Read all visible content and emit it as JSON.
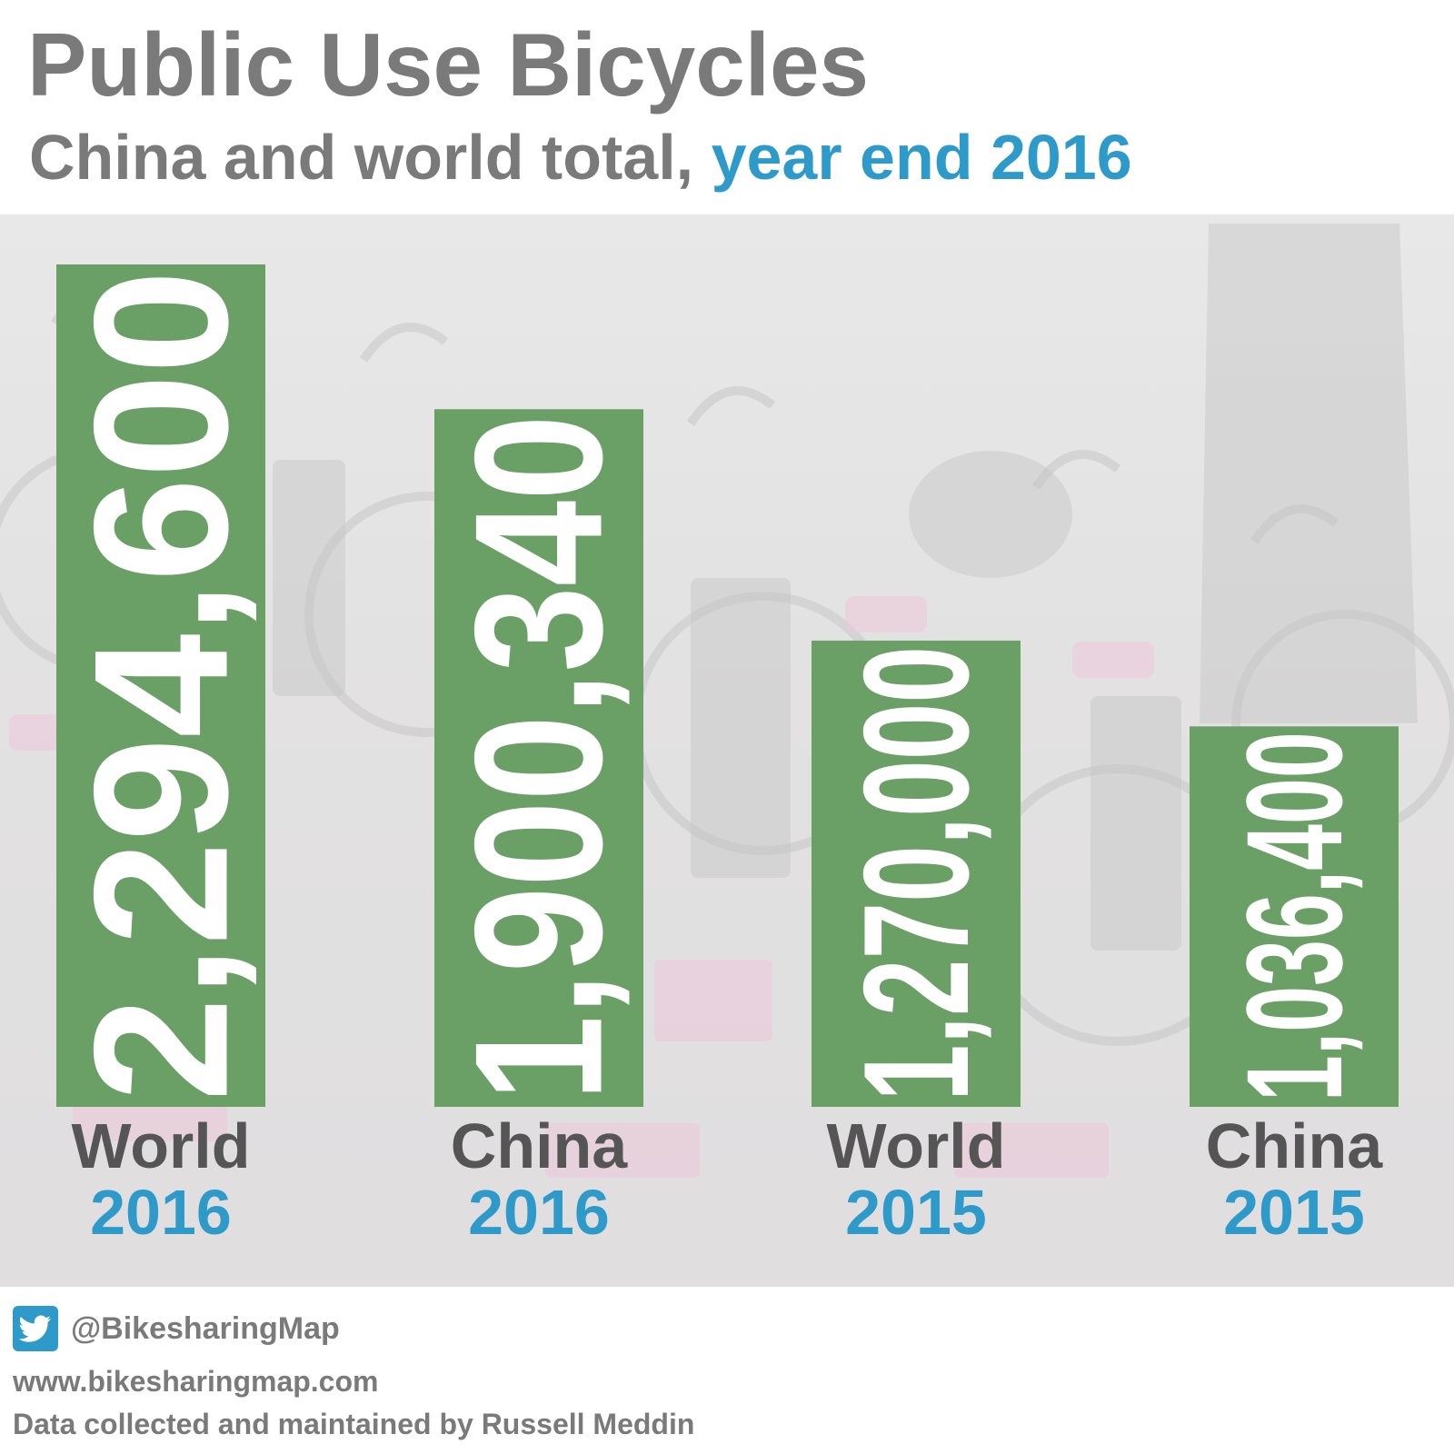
{
  "header": {
    "title": "Public Use Bicycles",
    "subtitle_main": "China and world total,",
    "subtitle_accent": "year end 2016"
  },
  "chart_data": {
    "type": "bar",
    "orientation": "vertical",
    "categories": [
      "World 2016",
      "China 2016",
      "World 2015",
      "China 2015"
    ],
    "labels": [
      {
        "name": "World",
        "year": "2016"
      },
      {
        "name": "China",
        "year": "2016"
      },
      {
        "name": "World",
        "year": "2015"
      },
      {
        "name": "China",
        "year": "2015"
      }
    ],
    "values": [
      2294600,
      1900340,
      1270000,
      1036400
    ],
    "value_labels": [
      "2,294,600",
      "1,900,340",
      "1,270,000",
      "1,036,400"
    ],
    "bar_color": "#6aa066",
    "name_color": "#555555",
    "year_color": "#2e9ac9",
    "value_label_color": "#ffffff",
    "value_label_orientation": "rotated-90-ccw",
    "grid": false,
    "legend": "none"
  },
  "footer": {
    "twitter_icon": "twitter-bird-icon",
    "handle": "@BikesharingMap",
    "website": "www.bikesharingmap.com",
    "credit": "Data collected and maintained by Russell Meddin"
  }
}
